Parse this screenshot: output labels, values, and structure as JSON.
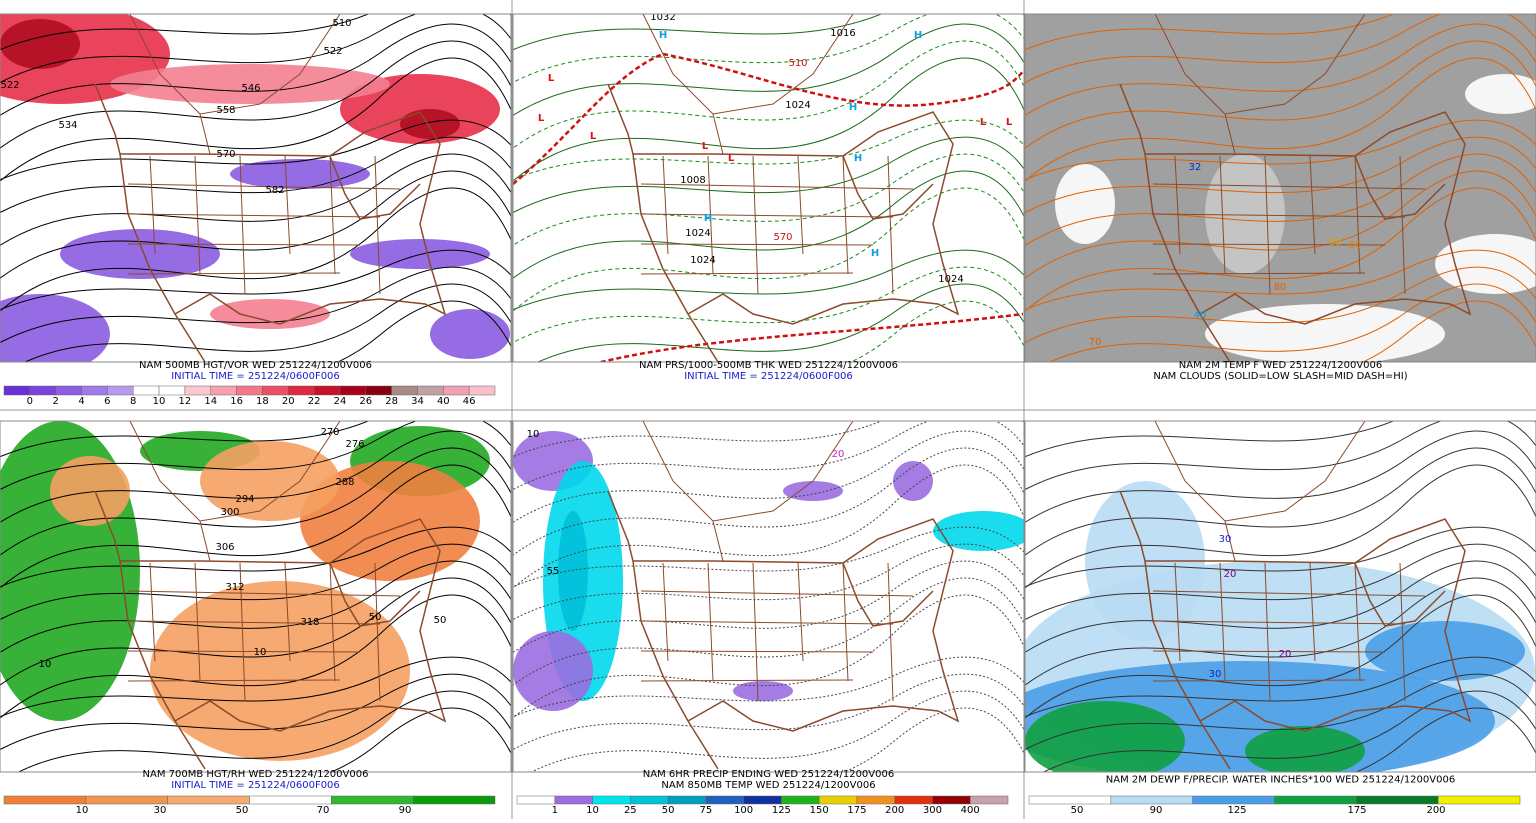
{
  "panels": [
    {
      "caption": [
        {
          "text": "NAM 500MB HGT/VOR WED 251224/1200V006",
          "color": "#000000"
        },
        {
          "text": "INITIAL TIME = 251224/0600F006",
          "color": "#1a1acc"
        }
      ],
      "colorbar": {
        "labels": [
          "0",
          "2",
          "4",
          "6",
          "8",
          "10",
          "12",
          "14",
          "16",
          "18",
          "20",
          "22",
          "24",
          "26",
          "28",
          "34",
          "40",
          "46"
        ],
        "colors": [
          "#6a2fd6",
          "#7a44dc",
          "#8c5ce2",
          "#a07ae8",
          "#b79aee",
          "#ffffff",
          "#ffffff",
          "#fbc8d0",
          "#f7a0ae",
          "#f27888",
          "#ec5064",
          "#e02840",
          "#c81028",
          "#a8001a",
          "#880010",
          "#aa8888",
          "#c0a0a0",
          "#f0a0b0",
          "#f8c0c8"
        ]
      },
      "map_labels": [
        "510",
        "522",
        "546",
        "558",
        "570",
        "582",
        "522",
        "534"
      ]
    },
    {
      "caption": [
        {
          "text": "NAM PRS/1000-500MB THK WED 251224/1200V006",
          "color": "#000000"
        },
        {
          "text": "INITIAL TIME = 251224/0600F006",
          "color": "#1a1acc"
        }
      ],
      "map_labels": [
        "1032",
        "1016",
        "1024",
        "1024",
        "1024",
        "1024",
        "1008",
        "510",
        "570",
        "H",
        "H",
        "H",
        "H",
        "H",
        "H",
        "L",
        "L",
        "L",
        "L",
        "L",
        "L",
        "L"
      ]
    },
    {
      "caption": [
        {
          "text": "NAM 2M TEMP F WED 251224/1200V006",
          "color": "#000000"
        },
        {
          "text": "NAM CLOUDS (SOLID=LOW SLASH=MID DASH=HI)",
          "color": "#000000"
        }
      ],
      "map_labels": [
        "32",
        "40",
        "50",
        "60",
        "70",
        "80"
      ]
    },
    {
      "caption": [
        {
          "text": "NAM 700MB HGT/RH WED 251224/1200V006",
          "color": "#000000"
        },
        {
          "text": "INITIAL TIME = 251224/0600F006",
          "color": "#1a1acc"
        }
      ],
      "colorbar": {
        "labels": [
          "10",
          "30",
          "50",
          "70",
          "90"
        ],
        "colors": [
          "#f07f3c",
          "#f29452",
          "#f5aa6e",
          "#ffffff",
          "#2eb82e",
          "#0a9a0a"
        ]
      },
      "map_labels": [
        "270",
        "276",
        "288",
        "294",
        "300",
        "306",
        "312",
        "318",
        "10",
        "50",
        "50",
        "10"
      ]
    },
    {
      "caption": [
        {
          "text": "NAM 6HR PRECIP ENDING WED 251224/1200V006",
          "color": "#000000"
        },
        {
          "text": "NAM 850MB TEMP WED 251224/1200V006",
          "color": "#000000"
        }
      ],
      "colorbar": {
        "labels": [
          "1",
          "10",
          "25",
          "50",
          "75",
          "100",
          "125",
          "150",
          "175",
          "200",
          "300",
          "400"
        ],
        "colors": [
          "#ffffff",
          "#9a6ee0",
          "#00e6f0",
          "#00c4d8",
          "#00a0b8",
          "#2060c0",
          "#1030a0",
          "#20b020",
          "#e8d000",
          "#f09020",
          "#e03010",
          "#900000",
          "#c8a0a8"
        ]
      },
      "map_labels": [
        "55",
        "10",
        "20"
      ]
    },
    {
      "caption": [
        {
          "text": "NAM 2M DEWP F/PRECIP. WATER INCHES*100 WED 251224/1200V006",
          "color": "#000000"
        }
      ],
      "colorbar": {
        "labels": [
          "50",
          "90",
          "125",
          "175",
          "200"
        ],
        "colors": [
          "#ffffff",
          "#b8dcf4",
          "#4a9ee8",
          "#10a040",
          "#0a7a2a",
          "#f0f000"
        ]
      },
      "map_labels": [
        "30",
        "20",
        "30",
        "20"
      ]
    }
  ]
}
